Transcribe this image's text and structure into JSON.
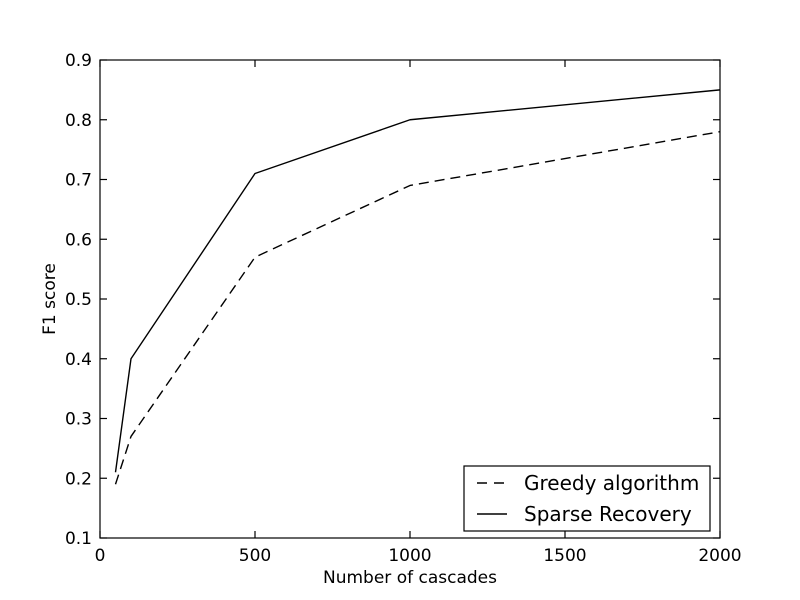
{
  "figure": {
    "background": "#ffffff",
    "foreground": "#000000"
  },
  "chart_data": {
    "type": "line",
    "title": "",
    "xlabel": "Number of cascades",
    "ylabel": "F1 score",
    "xlim": [
      0,
      2000
    ],
    "ylim": [
      0.1,
      0.9
    ],
    "xticks": [
      0,
      500,
      1000,
      1500,
      2000
    ],
    "yticks": [
      0.1,
      0.2,
      0.3,
      0.4,
      0.5,
      0.6,
      0.7,
      0.8,
      0.9
    ],
    "grid": false,
    "legend": {
      "position": "lower right",
      "border": true
    },
    "series": [
      {
        "name": "Greedy algorithm",
        "line_style": "dashed",
        "color": "#000000",
        "x": [
          50,
          100,
          500,
          1000,
          2000
        ],
        "y": [
          0.19,
          0.27,
          0.57,
          0.69,
          0.78
        ]
      },
      {
        "name": "Sparse Recovery",
        "line_style": "solid",
        "color": "#000000",
        "x": [
          50,
          100,
          500,
          1000,
          2000
        ],
        "y": [
          0.21,
          0.4,
          0.71,
          0.8,
          0.85
        ]
      }
    ]
  }
}
